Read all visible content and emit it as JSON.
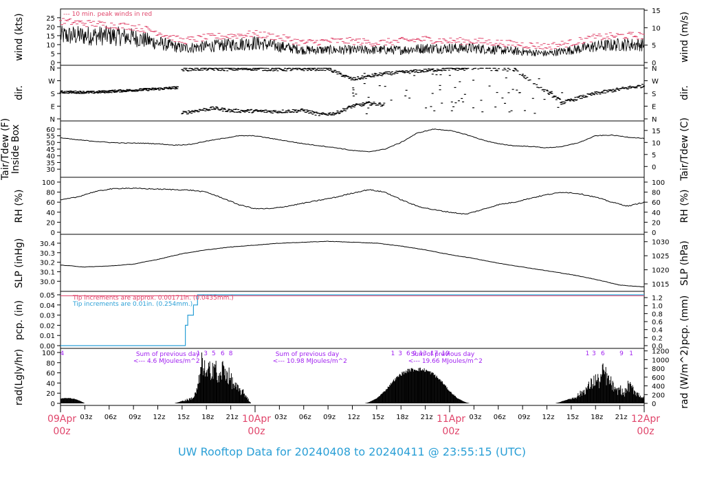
{
  "colors": {
    "axis": "#000000",
    "peak": "#e0446a",
    "cyan": "#2a9fd6",
    "purple": "#a020f0",
    "date": "#e0446a",
    "title": "#2a9fd6"
  },
  "footer": {
    "title": "UW Rooftop Data for 20240408  to  20240411 @ 23:55:15  (UTC)"
  },
  "chart_data": [
    {
      "type": "line",
      "panel": "wind",
      "ylabel": "wind (kts)",
      "ylabel_right": "wind (m/s)",
      "ylim": [
        0,
        28
      ],
      "yticks": [
        0,
        5,
        10,
        15,
        20,
        25
      ],
      "right_ticks": [
        0,
        5,
        10,
        15
      ],
      "right_factor": 0.5144,
      "annotation": "--- 10 min. peak winds in red",
      "series": [
        {
          "x": [
            0,
            3,
            6,
            9,
            12,
            15,
            18,
            21,
            24,
            27,
            30,
            33,
            36,
            39,
            42,
            45,
            48,
            51,
            54,
            57,
            60,
            63,
            66,
            69,
            72
          ],
          "values": [
            15,
            15,
            15,
            14,
            11,
            8,
            9,
            10,
            11,
            9,
            7,
            7,
            7,
            7,
            7,
            8,
            8,
            8,
            7,
            6,
            5,
            7,
            9,
            10,
            10
          ]
        },
        {
          "name": "10 min. peak winds",
          "x": [
            0,
            3,
            6,
            9,
            12,
            15,
            18,
            21,
            24,
            27,
            30,
            33,
            36,
            39,
            42,
            45,
            48,
            51,
            54,
            57,
            60,
            63,
            66,
            69,
            72
          ],
          "values": [
            23,
            22,
            21,
            20,
            17,
            12,
            14,
            15,
            16,
            14,
            11,
            12,
            12,
            11,
            12,
            13,
            12,
            12,
            11,
            10,
            9,
            11,
            14,
            15,
            15
          ]
        }
      ]
    },
    {
      "type": "scatter",
      "panel": "dir",
      "ylabel": "dir.",
      "yticks": [
        "N",
        "E",
        "S",
        "W",
        "N"
      ],
      "series": [
        {
          "x": [
            0,
            4,
            8,
            12,
            14.5
          ],
          "values": [
            190,
            188,
            200,
            212,
            222
          ]
        },
        {
          "x": [
            15,
            17,
            19,
            21,
            24,
            27,
            30,
            32,
            34,
            36,
            38,
            40
          ],
          "values": [
            40,
            60,
            75,
            58,
            55,
            52,
            60,
            30,
            40,
            90,
            110,
            100
          ]
        },
        {
          "x": [
            15,
            18,
            21,
            24,
            27,
            33,
            36,
            40,
            48,
            56,
            62,
            64,
            66,
            68,
            70,
            72
          ],
          "values": [
            350,
            355,
            352,
            355,
            350,
            355,
            280,
            320,
            355,
            350,
            115,
            150,
            180,
            200,
            220,
            235
          ]
        }
      ]
    },
    {
      "type": "line",
      "panel": "temp",
      "ylabel": "Tair/Tdew (F)",
      "ylabel2": "Inside Box",
      "ylabel_right": "Tair/Tdew (C)",
      "ylim": [
        27,
        62
      ],
      "yticks": [
        30,
        35,
        40,
        45,
        50,
        55,
        60
      ],
      "right_ticks": [
        0,
        5,
        10,
        15
      ],
      "x": [
        0,
        2,
        4,
        6,
        8,
        10,
        12,
        14,
        16,
        18,
        20,
        22,
        24,
        26,
        28,
        30,
        32,
        34,
        36,
        38,
        40,
        42,
        44,
        46,
        48,
        50,
        52,
        54,
        56,
        58,
        60,
        62,
        64,
        66,
        68,
        70,
        72
      ],
      "values": [
        53.5,
        52,
        51,
        50,
        49.5,
        49.5,
        49,
        48,
        48.5,
        51,
        53,
        55,
        55,
        53,
        51,
        49,
        47.5,
        46,
        44,
        43,
        45,
        50,
        57,
        60,
        59,
        56,
        52,
        49,
        47.5,
        47,
        46,
        47,
        50,
        55,
        55.5,
        54,
        53
      ]
    },
    {
      "type": "line",
      "panel": "rh",
      "ylabel": "RH (%)",
      "ylim": [
        0,
        100
      ],
      "yticks": [
        0,
        20,
        40,
        60,
        80,
        100
      ],
      "right_ticks": [
        0,
        20,
        40,
        60,
        80,
        100
      ],
      "x": [
        0,
        2,
        4,
        6,
        8,
        10,
        12,
        14,
        16,
        18,
        20,
        22,
        24,
        26,
        28,
        30,
        32,
        34,
        36,
        38,
        40,
        42,
        44,
        46,
        48,
        50,
        52,
        54,
        56,
        58,
        60,
        62,
        64,
        66,
        68,
        70,
        72
      ],
      "values": [
        64,
        70,
        80,
        86,
        88,
        87,
        86,
        85,
        84,
        80,
        68,
        55,
        47,
        47,
        52,
        58,
        64,
        70,
        78,
        85,
        80,
        65,
        52,
        45,
        40,
        36,
        45,
        55,
        60,
        68,
        75,
        80,
        77,
        70,
        60,
        52,
        60
      ]
    },
    {
      "type": "line",
      "panel": "slp",
      "ylabel": "SLP (inHg)",
      "ylabel_right": "SLP (hPa)",
      "ylim": [
        29.93,
        30.45
      ],
      "yticks": [
        30.0,
        30.1,
        30.2,
        30.3,
        30.4
      ],
      "right_ticks": [
        1015,
        1020,
        1025,
        1030
      ],
      "right_factor": 33.8639,
      "x": [
        0,
        3,
        6,
        9,
        12,
        15,
        18,
        21,
        24,
        27,
        30,
        33,
        36,
        39,
        42,
        45,
        48,
        51,
        54,
        57,
        60,
        63,
        66,
        69,
        72
      ],
      "values": [
        30.17,
        30.15,
        30.16,
        30.18,
        30.23,
        30.29,
        30.33,
        30.36,
        30.38,
        30.4,
        30.41,
        30.42,
        30.41,
        30.4,
        30.37,
        30.33,
        30.28,
        30.24,
        30.19,
        30.15,
        30.11,
        30.07,
        30.02,
        29.96,
        29.94
      ]
    },
    {
      "type": "line",
      "panel": "pcp",
      "ylabel": "pcp. (in)",
      "ylabel_right": "pcp. (mm)",
      "ylim": [
        0,
        0.05
      ],
      "yticks": [
        0,
        0.01,
        0.02,
        0.03,
        0.04,
        0.05
      ],
      "right_ticks": [
        0,
        0.2,
        0.4,
        0.6,
        0.8,
        1.0,
        1.2
      ],
      "note_red": "Tip increments are approx. 0.00171in. (0.0435mm.)",
      "note_cyan": "Tip increments are 0.01in. (0.254mm.)",
      "series": [
        {
          "name": "Tip increments are 0.01in. (0.254mm.)",
          "x": [
            0,
            15.4,
            15.4,
            15.7,
            15.7,
            16.4,
            16.4,
            16.9,
            16.9,
            72
          ],
          "values": [
            0,
            0,
            0.02,
            0.02,
            0.03,
            0.03,
            0.04,
            0.04,
            0.05,
            0.05
          ]
        }
      ]
    },
    {
      "type": "area",
      "panel": "rad",
      "ylabel": "rad(Lgly/hr)",
      "ylabel_right": "rad (W/m^2)",
      "ylim": [
        0,
        100
      ],
      "yticks": [
        0,
        20,
        40,
        60,
        80,
        100
      ],
      "right_ticks": [
        0,
        200,
        400,
        600,
        800,
        1000,
        1200
      ],
      "right_factor": 11.63,
      "day_labels": [
        "Sum of previous day",
        "Sum of previous day",
        "Sum of previous day"
      ],
      "day_sums": [
        "<--- 4.6 MJoules/m^2",
        "<--- 10.98 MJoules/m^2",
        "<--- 19.66 MJoules/m^2"
      ],
      "hour_marks": [
        {
          "x": 0.2,
          "t": "4"
        },
        {
          "x": 17.0,
          "t": "1"
        },
        {
          "x": 17.9,
          "t": "3"
        },
        {
          "x": 18.9,
          "t": "5"
        },
        {
          "x": 20.0,
          "t": "6"
        },
        {
          "x": 21.0,
          "t": "8"
        },
        {
          "x": 41.0,
          "t": "1"
        },
        {
          "x": 41.9,
          "t": "3"
        },
        {
          "x": 42.9,
          "t": "6"
        },
        {
          "x": 43.7,
          "t": "9"
        },
        {
          "x": 44.7,
          "t": "13"
        },
        {
          "x": 46.1,
          "t": "17"
        },
        {
          "x": 47.5,
          "t": "19"
        },
        {
          "x": 65.0,
          "t": "1"
        },
        {
          "x": 65.8,
          "t": "3"
        },
        {
          "x": 66.9,
          "t": "6"
        },
        {
          "x": 69.2,
          "t": "9"
        },
        {
          "x": 70.4,
          "t": "1"
        }
      ],
      "x": [
        0,
        1,
        2,
        2.8,
        3,
        14,
        14.5,
        15,
        16,
        16.5,
        17,
        17.5,
        18,
        18.5,
        19,
        19.5,
        20,
        20.5,
        21,
        21.5,
        22,
        22.5,
        23,
        23.3,
        23.5,
        37.5,
        38,
        39,
        40,
        41,
        42,
        43,
        44,
        45,
        46,
        47,
        48,
        49,
        50,
        50.5,
        61,
        61.5,
        62,
        63,
        64,
        65,
        66,
        66.5,
        67,
        67.5,
        68,
        68.5,
        69,
        69.5,
        70,
        70.5,
        71,
        71.5,
        72
      ],
      "values": [
        10,
        11,
        8,
        2,
        0,
        0,
        2,
        5,
        10,
        15,
        40,
        100,
        60,
        80,
        90,
        50,
        80,
        70,
        55,
        40,
        30,
        25,
        15,
        5,
        0,
        0,
        2,
        10,
        25,
        45,
        60,
        68,
        70,
        68,
        60,
        45,
        25,
        10,
        2,
        0,
        0,
        2,
        5,
        10,
        20,
        35,
        55,
        50,
        75,
        55,
        45,
        25,
        35,
        20,
        40,
        35,
        25,
        18,
        12
      ]
    }
  ],
  "time_axis": {
    "hour_labels": [
      "03z",
      "06z",
      "09z",
      "12z",
      "15z",
      "18z",
      "21z",
      "03z",
      "06z",
      "09z",
      "12z",
      "15z",
      "18z",
      "21z",
      "03z",
      "06z",
      "09z",
      "12z",
      "15z",
      "18z",
      "21z"
    ],
    "days": [
      {
        "date": "09Apr",
        "z": "00z"
      },
      {
        "date": "10Apr",
        "z": "00z"
      },
      {
        "date": "11Apr",
        "z": "00z"
      },
      {
        "date": "12Apr",
        "z": "00z"
      }
    ]
  }
}
